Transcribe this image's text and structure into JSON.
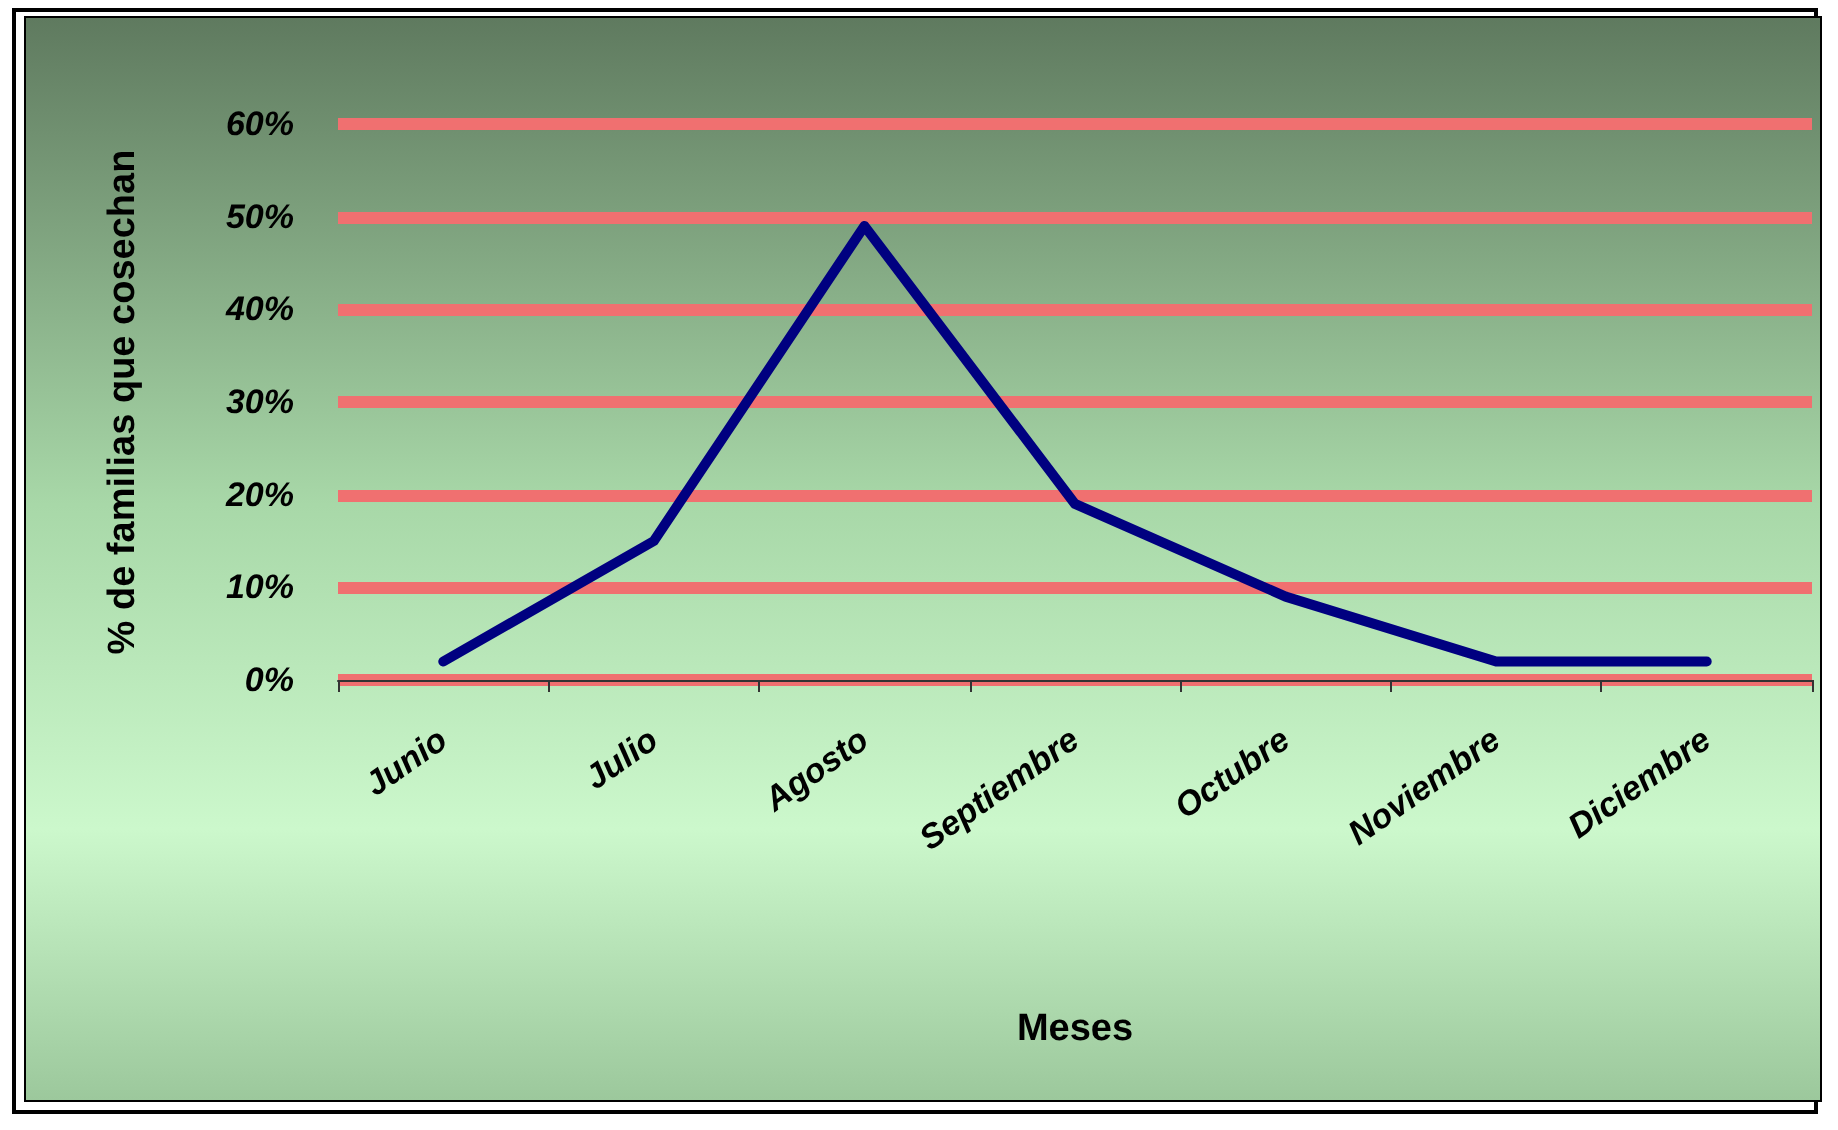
{
  "chart_data": {
    "type": "line",
    "categories": [
      "Junio",
      "Julio",
      "Agosto",
      "Septiembre",
      "Octubre",
      "Noviembre",
      "Diciembre"
    ],
    "series": [
      {
        "color": "#000080",
        "values": [
          2,
          15,
          49,
          19,
          9,
          2,
          2
        ]
      }
    ],
    "xlabel": "Meses",
    "ylabel": "% de familias que cosechan",
    "ylim": [
      0,
      60
    ],
    "yticks": [
      {
        "value": 0,
        "label": "0%"
      },
      {
        "value": 10,
        "label": "10%"
      },
      {
        "value": 20,
        "label": "20%"
      },
      {
        "value": 30,
        "label": "30%"
      },
      {
        "value": 40,
        "label": "40%"
      },
      {
        "value": 50,
        "label": "50%"
      },
      {
        "value": 60,
        "label": "60%"
      }
    ],
    "grid": "y",
    "marker": "none",
    "line_style": "solid"
  }
}
